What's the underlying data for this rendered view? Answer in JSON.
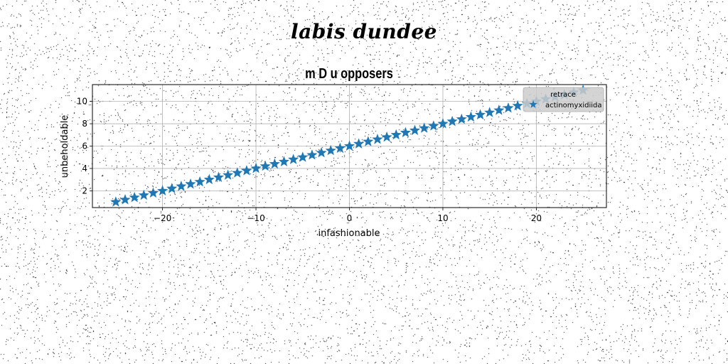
{
  "page": {
    "title": "labis dundee",
    "background": "#ffffff"
  },
  "chart_data": {
    "type": "scatter",
    "title": "m D u opposers",
    "xlabel": "infashionable",
    "ylabel": "unbeholdable",
    "xlim": [
      -27.5,
      27.5
    ],
    "ylim": [
      0.5,
      11.5
    ],
    "xticks": [
      -20,
      -10,
      0,
      10,
      20
    ],
    "yticks": [
      2,
      4,
      6,
      8,
      10
    ],
    "grid": true,
    "legend": {
      "title": "retrace",
      "placement": "top-right",
      "entries": [
        "actinomyxidiida"
      ]
    },
    "series": [
      {
        "name": "actinomyxidiida",
        "marker": "star",
        "color": "#1f77b4",
        "x": [
          -25,
          -24,
          -23,
          -22,
          -21,
          -20,
          -19,
          -18,
          -17,
          -16,
          -15,
          -14,
          -13,
          -12,
          -11,
          -10,
          -9,
          -8,
          -7,
          -6,
          -5,
          -4,
          -3,
          -2,
          -1,
          0,
          1,
          2,
          3,
          4,
          5,
          6,
          7,
          8,
          9,
          10,
          11,
          12,
          13,
          14,
          15,
          16,
          17,
          18,
          19,
          20,
          21,
          22,
          23,
          24,
          25
        ],
        "y": [
          1.0,
          1.2,
          1.4,
          1.6,
          1.8,
          2.0,
          2.2,
          2.4,
          2.6,
          2.8,
          3.0,
          3.2,
          3.4,
          3.6,
          3.8,
          4.0,
          4.2,
          4.4,
          4.6,
          4.8,
          5.0,
          5.2,
          5.4,
          5.6,
          5.8,
          6.0,
          6.2,
          6.4,
          6.6,
          6.8,
          7.0,
          7.2,
          7.4,
          7.6,
          7.8,
          8.0,
          8.2,
          8.4,
          8.6,
          8.8,
          9.0,
          9.2,
          9.4,
          9.6,
          9.8,
          10.0,
          10.2,
          10.4,
          10.6,
          10.8,
          11.0
        ]
      }
    ]
  }
}
